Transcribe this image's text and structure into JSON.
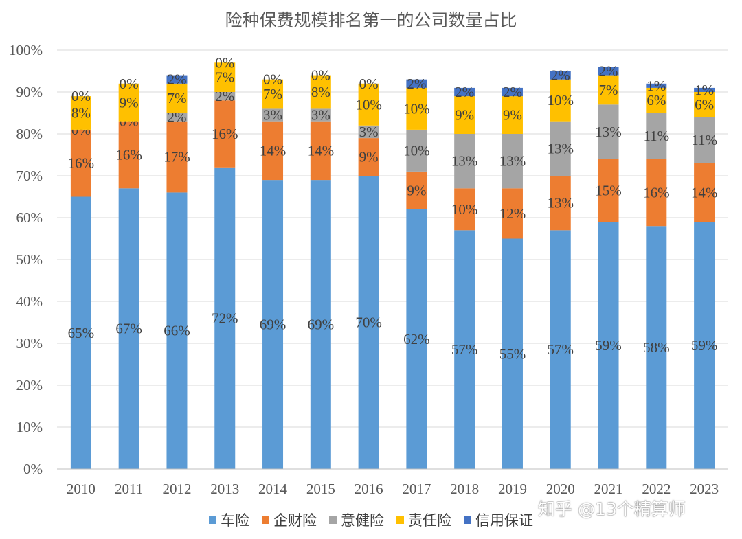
{
  "chart_data": {
    "type": "bar",
    "stacked": true,
    "title": "险种保费规模排名第一的公司数量占比",
    "xlabel": "",
    "ylabel": "",
    "ylim": [
      0,
      100
    ],
    "yticks": [
      "0%",
      "10%",
      "20%",
      "30%",
      "40%",
      "50%",
      "60%",
      "70%",
      "80%",
      "90%",
      "100%"
    ],
    "grid": true,
    "legend_position": "bottom",
    "categories": [
      "2010",
      "2011",
      "2012",
      "2013",
      "2014",
      "2015",
      "2016",
      "2017",
      "2018",
      "2019",
      "2020",
      "2021",
      "2022",
      "2023"
    ],
    "series": [
      {
        "name": "车险",
        "color": "#5B9BD5",
        "values": [
          65,
          67,
          66,
          72,
          69,
          69,
          70,
          62,
          57,
          55,
          57,
          59,
          58,
          59
        ]
      },
      {
        "name": "企财险",
        "color": "#ED7D31",
        "values": [
          16,
          16,
          17,
          16,
          14,
          14,
          9,
          9,
          10,
          12,
          13,
          15,
          16,
          14
        ]
      },
      {
        "name": "意健险",
        "color": "#A5A5A5",
        "values": [
          0,
          0,
          2,
          2,
          3,
          3,
          3,
          10,
          13,
          13,
          13,
          13,
          11,
          11
        ]
      },
      {
        "name": "责任险",
        "color": "#FFC000",
        "values": [
          8,
          9,
          7,
          7,
          7,
          8,
          10,
          10,
          9,
          9,
          10,
          7,
          6,
          6
        ]
      },
      {
        "name": "信用保证",
        "color": "#4472C4",
        "values": [
          0,
          0,
          2,
          0,
          0,
          0,
          0,
          2,
          2,
          2,
          2,
          2,
          1,
          1
        ]
      }
    ]
  },
  "watermark": "知乎 @13个精算师"
}
